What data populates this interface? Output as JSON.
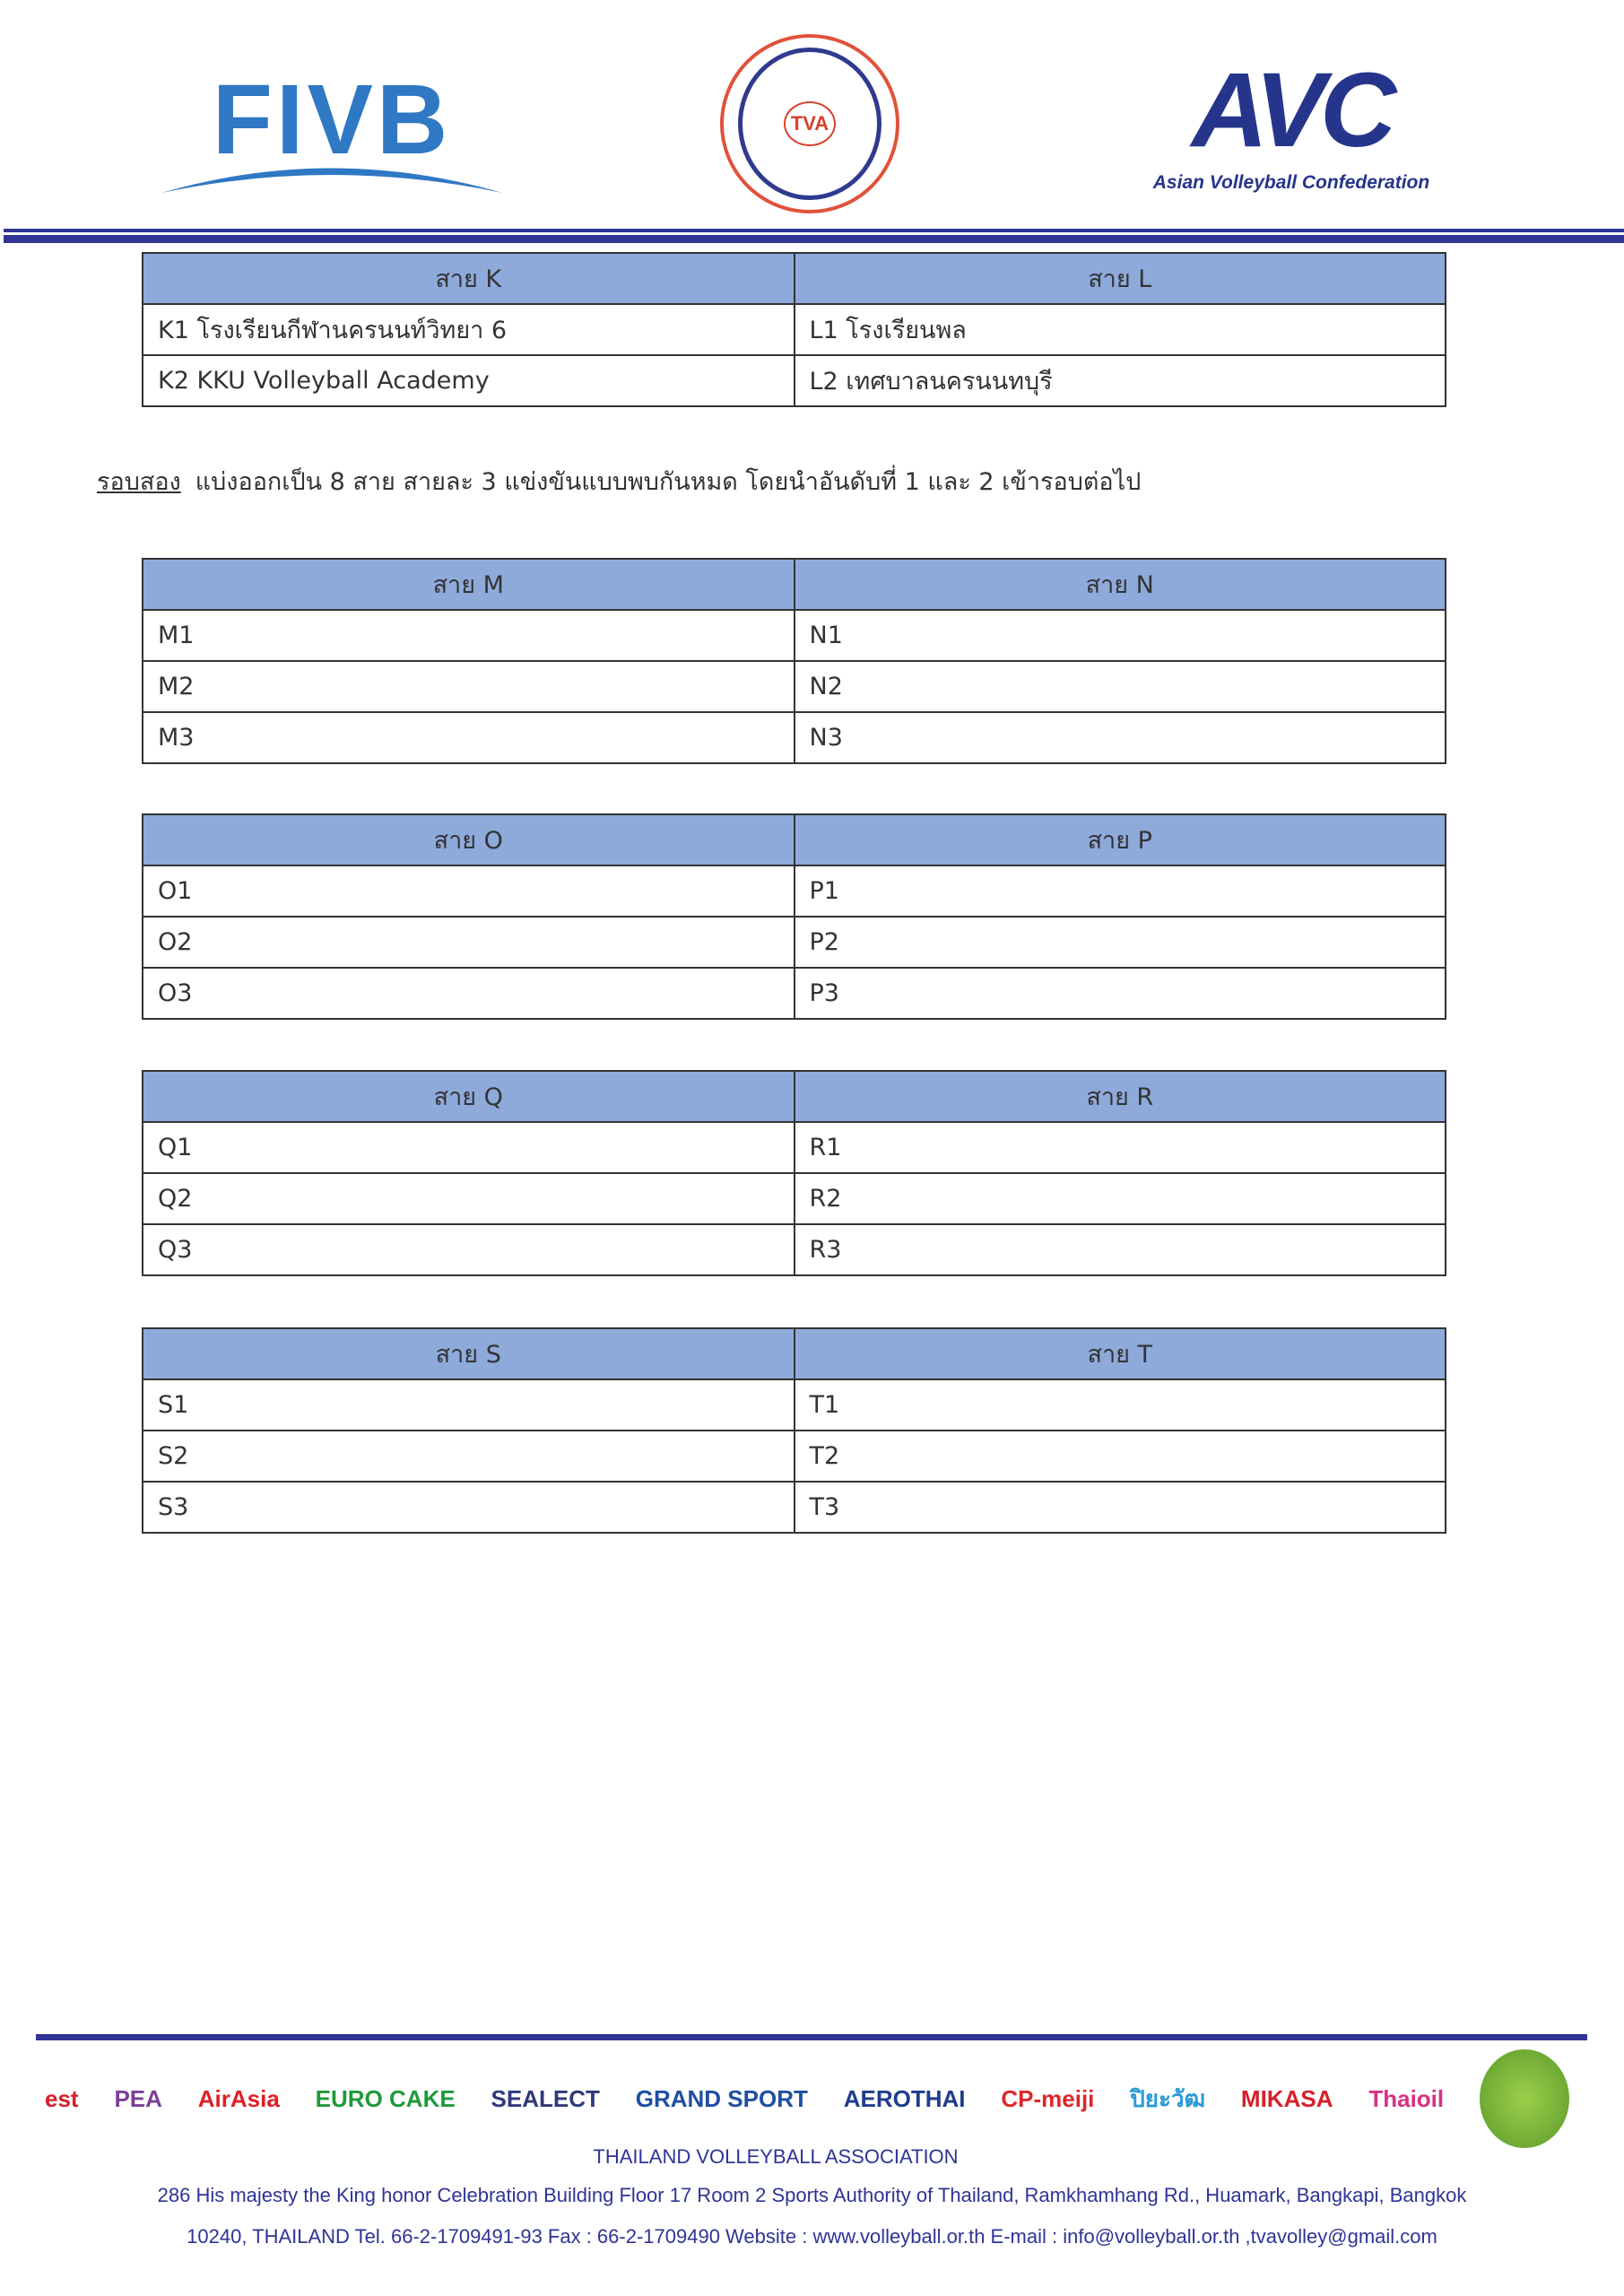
{
  "header": {
    "logos": {
      "fivb": "FIVB",
      "tva": "TVA",
      "avc": "AVC",
      "avc_sub": "Asian Volleyball Confederation"
    }
  },
  "tables": [
    {
      "headers": [
        "สาย K",
        "สาย L"
      ],
      "rows": [
        [
          "K1 โรงเรียนกีฬานครนนท์วิทยา 6",
          "L1 โรงเรียนพล"
        ],
        [
          "K2 KKU Volleyball Academy",
          "L2 เทศบาลนครนนทบุรี"
        ]
      ]
    },
    {
      "headers": [
        "สาย M",
        "สาย N"
      ],
      "rows": [
        [
          "M1",
          "N1"
        ],
        [
          "M2",
          "N2"
        ],
        [
          "M3",
          "N3"
        ]
      ]
    },
    {
      "headers": [
        "สาย O",
        "สาย P"
      ],
      "rows": [
        [
          "O1",
          "P1"
        ],
        [
          "O2",
          "P2"
        ],
        [
          "O3",
          "P3"
        ]
      ]
    },
    {
      "headers": [
        "สาย Q",
        "สาย R"
      ],
      "rows": [
        [
          "Q1",
          "R1"
        ],
        [
          "Q2",
          "R2"
        ],
        [
          "Q3",
          "R3"
        ]
      ]
    },
    {
      "headers": [
        "สาย S",
        "สาย T"
      ],
      "rows": [
        [
          "S1",
          "T1"
        ],
        [
          "S2",
          "T2"
        ],
        [
          "S3",
          "T3"
        ]
      ]
    }
  ],
  "note": {
    "label": "รอบสอง",
    "text": "แบ่งออกเป็น 8  สาย สายละ 3 แข่งขันแบบพบกันหมด โดยนำอันดับที่ 1 และ 2 เข้ารอบต่อไป"
  },
  "footer": {
    "sponsors": [
      "est",
      "PEA",
      "AirAsia",
      "EURO CAKE",
      "SEALECT",
      "GRAND SPORT",
      "AEROTHAI",
      "CP-meiji",
      "ปิยะวัฒ",
      "MIKASA",
      "Thaioil"
    ],
    "sponsor_colors": [
      "#d6202a",
      "#7b3f98",
      "#e01e26",
      "#1f9a3a",
      "#2e3a7a",
      "#1f4ea1",
      "#1f3c8f",
      "#e0262b",
      "#2a9ad6",
      "#d6202a",
      "#d63384"
    ],
    "association": "THAILAND VOLLEYBALL ASSOCIATION",
    "address_line1": "286 His majesty the King honor Celebration Building Floor 17 Room 2 Sports Authority of Thailand, Ramkhamhang Rd., Huamark, Bangkapi, Bangkok",
    "address_line2": "10240, THAILAND Tel. 66-2-1709491-93  Fax : 66-2-1709490 Website : www.volleyball.or.th  E-mail : info@volleyball.or.th ,tvavolley@gmail.com"
  }
}
